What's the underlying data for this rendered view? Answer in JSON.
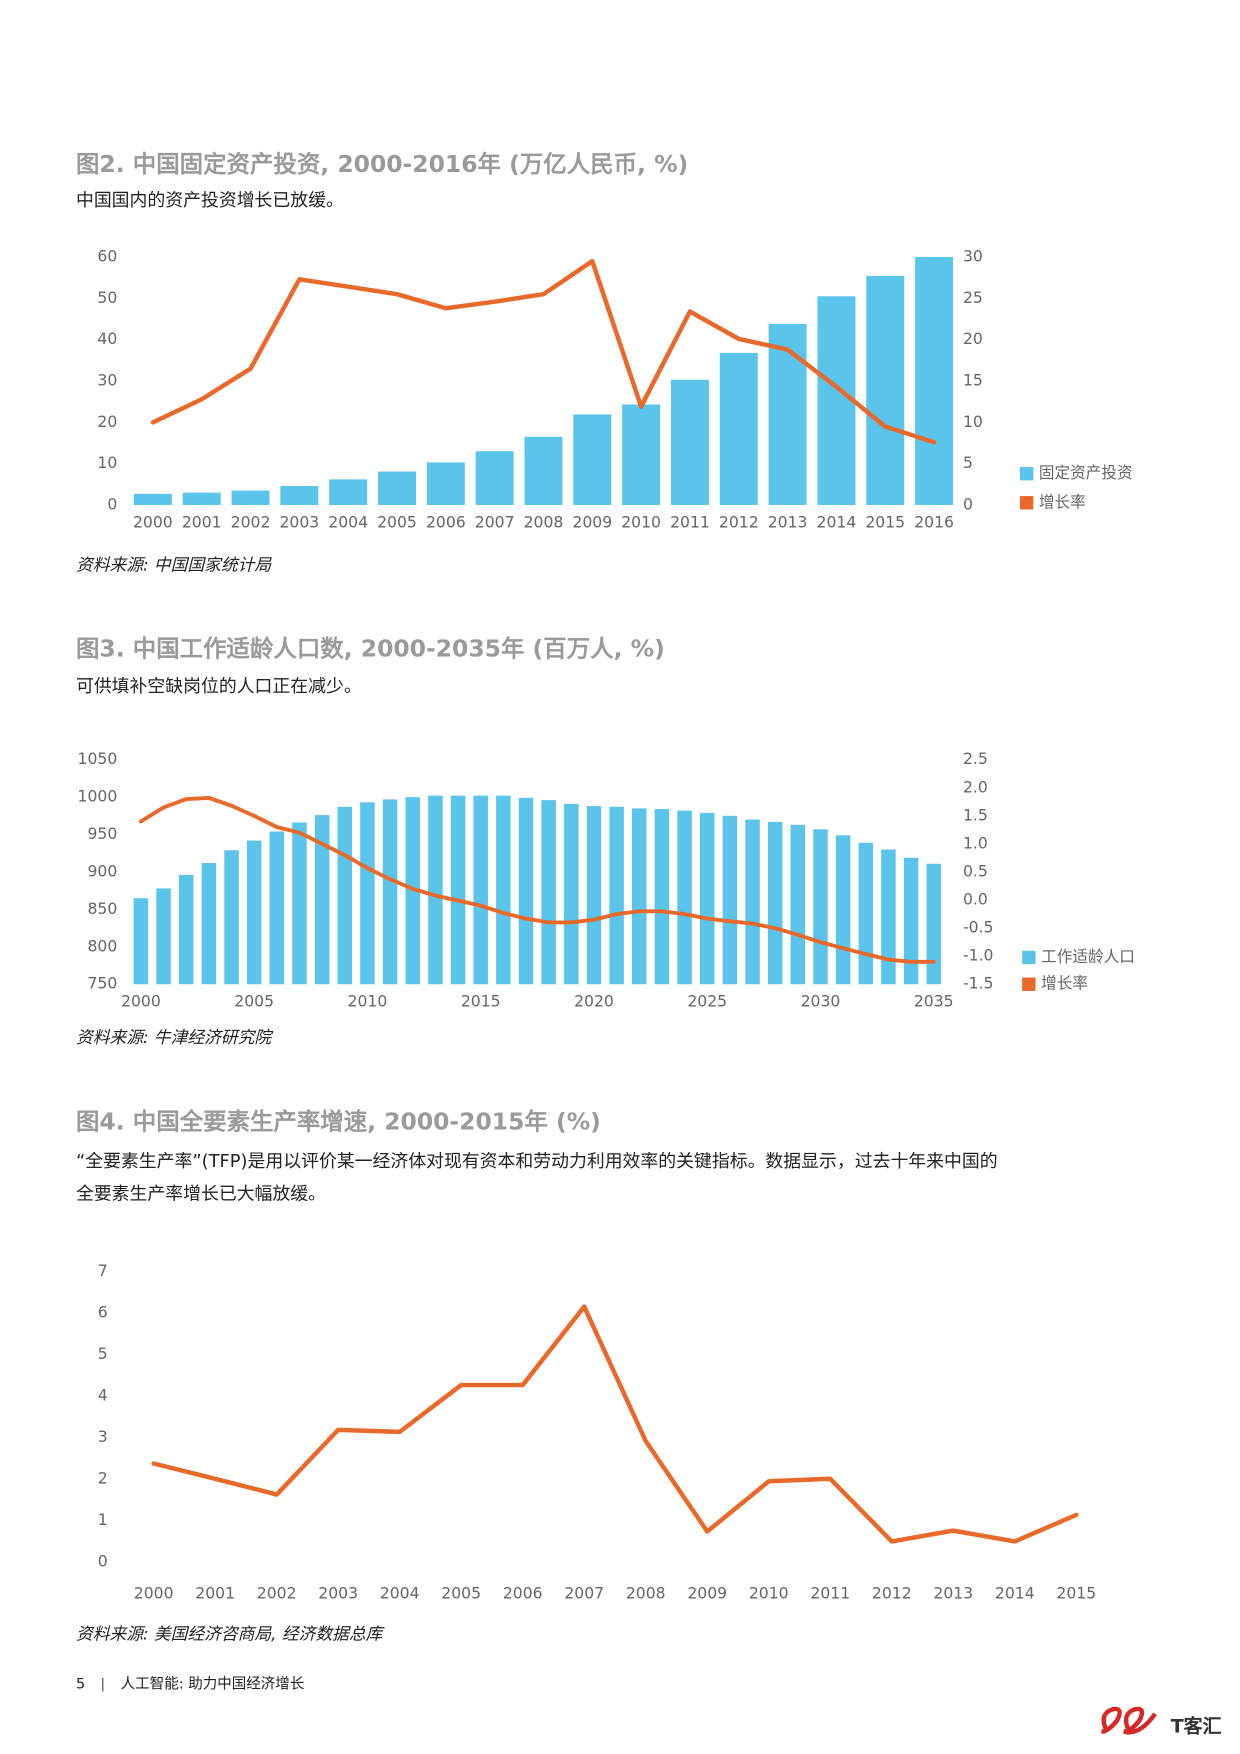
{
  "chart_data": [
    {
      "type": "combo",
      "title": "图2. 中国固定资产投资, 2000-2016年 (万亿人民币, %)",
      "subtitle": "中国国内的资产投资增长已放缓。",
      "source": "资料来源: 中国国家统计局",
      "categories": [
        "2000",
        "2001",
        "2002",
        "2003",
        "2004",
        "2005",
        "2006",
        "2007",
        "2008",
        "2009",
        "2010",
        "2011",
        "2012",
        "2013",
        "2014",
        "2015",
        "2016"
      ],
      "series": [
        {
          "name": "固定资产投资",
          "type": "bar",
          "color": "#5bc4ea",
          "values": [
            2.7,
            3.0,
            3.5,
            4.6,
            6.2,
            8.1,
            10.3,
            13.0,
            16.5,
            21.9,
            24.3,
            30.3,
            36.8,
            43.8,
            50.5,
            55.4,
            60.0
          ]
        },
        {
          "name": "增长率",
          "type": "line",
          "axis": "y2",
          "color": "#e8692a",
          "values": [
            10.0,
            12.8,
            16.5,
            27.3,
            26.4,
            25.5,
            23.8,
            24.6,
            25.5,
            29.5,
            11.9,
            23.4,
            20.1,
            18.8,
            14.3,
            9.5,
            7.6
          ]
        }
      ],
      "ylim": [
        0,
        60
      ],
      "yticks": [
        0,
        10,
        20,
        30,
        40,
        50,
        60
      ],
      "y2lim": [
        0,
        30
      ],
      "y2ticks": [
        0,
        5,
        10,
        15,
        20,
        25,
        30
      ],
      "legend": "right"
    },
    {
      "type": "combo",
      "title": "图3. 中国工作适龄人口数, 2000-2035年 (百万人, %)",
      "subtitle": "可供填补空缺岗位的人口正在减少。",
      "source": "资料来源: 牛津经济研究院",
      "x": [
        2000,
        2001,
        2002,
        2003,
        2004,
        2005,
        2006,
        2007,
        2008,
        2009,
        2010,
        2011,
        2012,
        2013,
        2014,
        2015,
        2016,
        2017,
        2018,
        2019,
        2020,
        2021,
        2022,
        2023,
        2024,
        2025,
        2026,
        2027,
        2028,
        2029,
        2030,
        2031,
        2032,
        2033,
        2034,
        2035
      ],
      "series": [
        {
          "name": "工作适龄人口",
          "type": "bar",
          "color": "#5bc4ea",
          "values": [
            865,
            878,
            896,
            912,
            929,
            942,
            954,
            966,
            976,
            987,
            993,
            997,
            1000,
            1002,
            1002,
            1002,
            1002,
            999,
            996,
            991,
            988,
            987,
            985,
            984,
            982,
            979,
            975,
            970,
            967,
            963,
            957,
            949,
            939,
            930,
            919,
            911
          ]
        },
        {
          "name": "增长率",
          "type": "line",
          "axis": "y2",
          "color": "#e8692a",
          "values": [
            1.4,
            1.65,
            1.8,
            1.82,
            1.68,
            1.5,
            1.3,
            1.2,
            1.0,
            0.8,
            0.57,
            0.37,
            0.2,
            0.08,
            -0.01,
            -0.1,
            -0.23,
            -0.33,
            -0.4,
            -0.4,
            -0.35,
            -0.25,
            -0.2,
            -0.2,
            -0.25,
            -0.33,
            -0.38,
            -0.42,
            -0.5,
            -0.62,
            -0.75,
            -0.86,
            -0.96,
            -1.06,
            -1.1,
            -1.1
          ]
        }
      ],
      "xlim": [
        1999.5,
        2035.5
      ],
      "xticks": [
        2000,
        2005,
        2010,
        2015,
        2020,
        2025,
        2030,
        2035
      ],
      "ylim": [
        750,
        1050
      ],
      "yticks": [
        750,
        800,
        850,
        900,
        950,
        1000,
        1050
      ],
      "y2lim": [
        -1.5,
        2.5
      ],
      "y2ticks": [
        -1.5,
        {
          "value": -1,
          "label": "-1.0"
        },
        -0.5,
        {
          "value": 0,
          "label": "0.0"
        },
        0.5,
        {
          "value": 1,
          "label": "1.0"
        },
        1.5,
        {
          "value": 2,
          "label": "2.0"
        },
        2.5
      ],
      "legend": "right"
    },
    {
      "type": "line",
      "title": "图4. 中国全要素生产率增速, 2000-2015年 (%)",
      "subtitle": [
        "“全要素生产率”(TFP)是用以评价某一经济体对现有资本和劳动力利用效率的关键指标。数据显示，过去十年来中国的",
        "全要素生产率增长已大幅放缓。"
      ],
      "source": "资料来源: 美国经济咨商局, 经济数据总库",
      "categories": [
        "2000",
        "2001",
        "2002",
        "2003",
        "2004",
        "2005",
        "2006",
        "2007",
        "2008",
        "2009",
        "2010",
        "2011",
        "2012",
        "2013",
        "2014",
        "2015"
      ],
      "series": [
        {
          "type": "line",
          "color": "#e8692a",
          "values": [
            2.37,
            2.0,
            1.62,
            3.18,
            3.13,
            4.26,
            4.26,
            6.15,
            2.91,
            0.73,
            1.94,
            2.0,
            0.49,
            0.75,
            0.49,
            1.13
          ]
        }
      ],
      "ylim": [
        0,
        7
      ],
      "yticks": [
        0,
        1,
        2,
        3,
        4,
        5,
        6,
        7
      ]
    }
  ],
  "footer": {
    "page": "5",
    "text": "人工智能: 助力中国经济增长",
    "logo": "T客汇"
  }
}
